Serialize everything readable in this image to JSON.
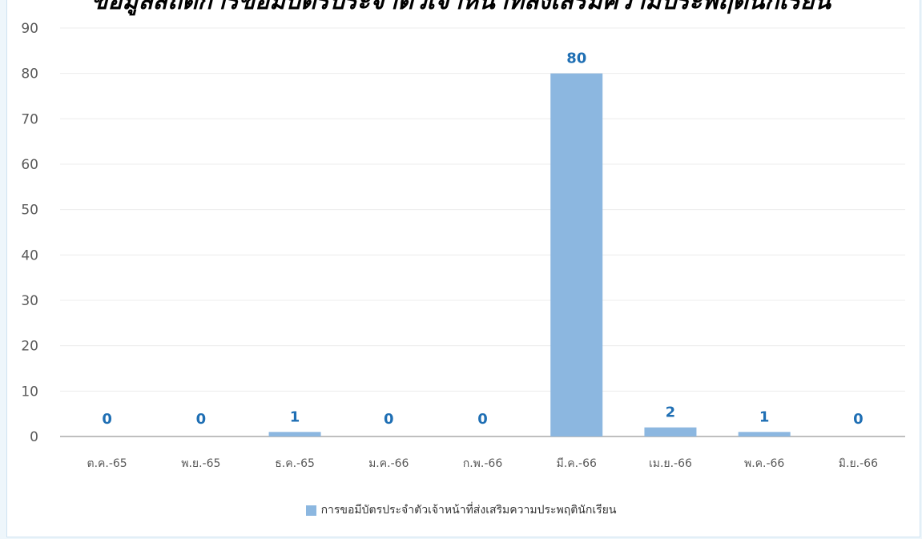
{
  "chart_data": {
    "type": "bar",
    "title": "ข้อมูลสถิติการขอมีบัตรประจำตัวเจ้าหน้าที่ส่งเสริมความประพฤตินักเรียน",
    "categories": [
      "ต.ค.-65",
      "พ.ย.-65",
      "ธ.ค.-65",
      "ม.ค.-66",
      "ก.พ.-66",
      "มี.ค.-66",
      "เม.ย.-66",
      "พ.ค.-66",
      "มิ.ย.-66"
    ],
    "series": [
      {
        "name": "การขอมีบัตรประจำตัวเจ้าหน้าที่ส่งเสริมความประพฤตินักเรียน",
        "values": [
          0,
          0,
          1,
          0,
          0,
          80,
          2,
          1,
          0
        ]
      }
    ],
    "ylim": [
      0,
      90
    ],
    "yticks": [
      0,
      10,
      20,
      30,
      40,
      50,
      60,
      70,
      80,
      90
    ],
    "grid": true,
    "legend_position": "bottom",
    "data_labels": true
  },
  "colors": {
    "bar": "#8cb7e0",
    "data_label": "#1f6fb4",
    "grid": "#ececec",
    "axis": "#bfbfbf",
    "tick_label": "#595959"
  }
}
